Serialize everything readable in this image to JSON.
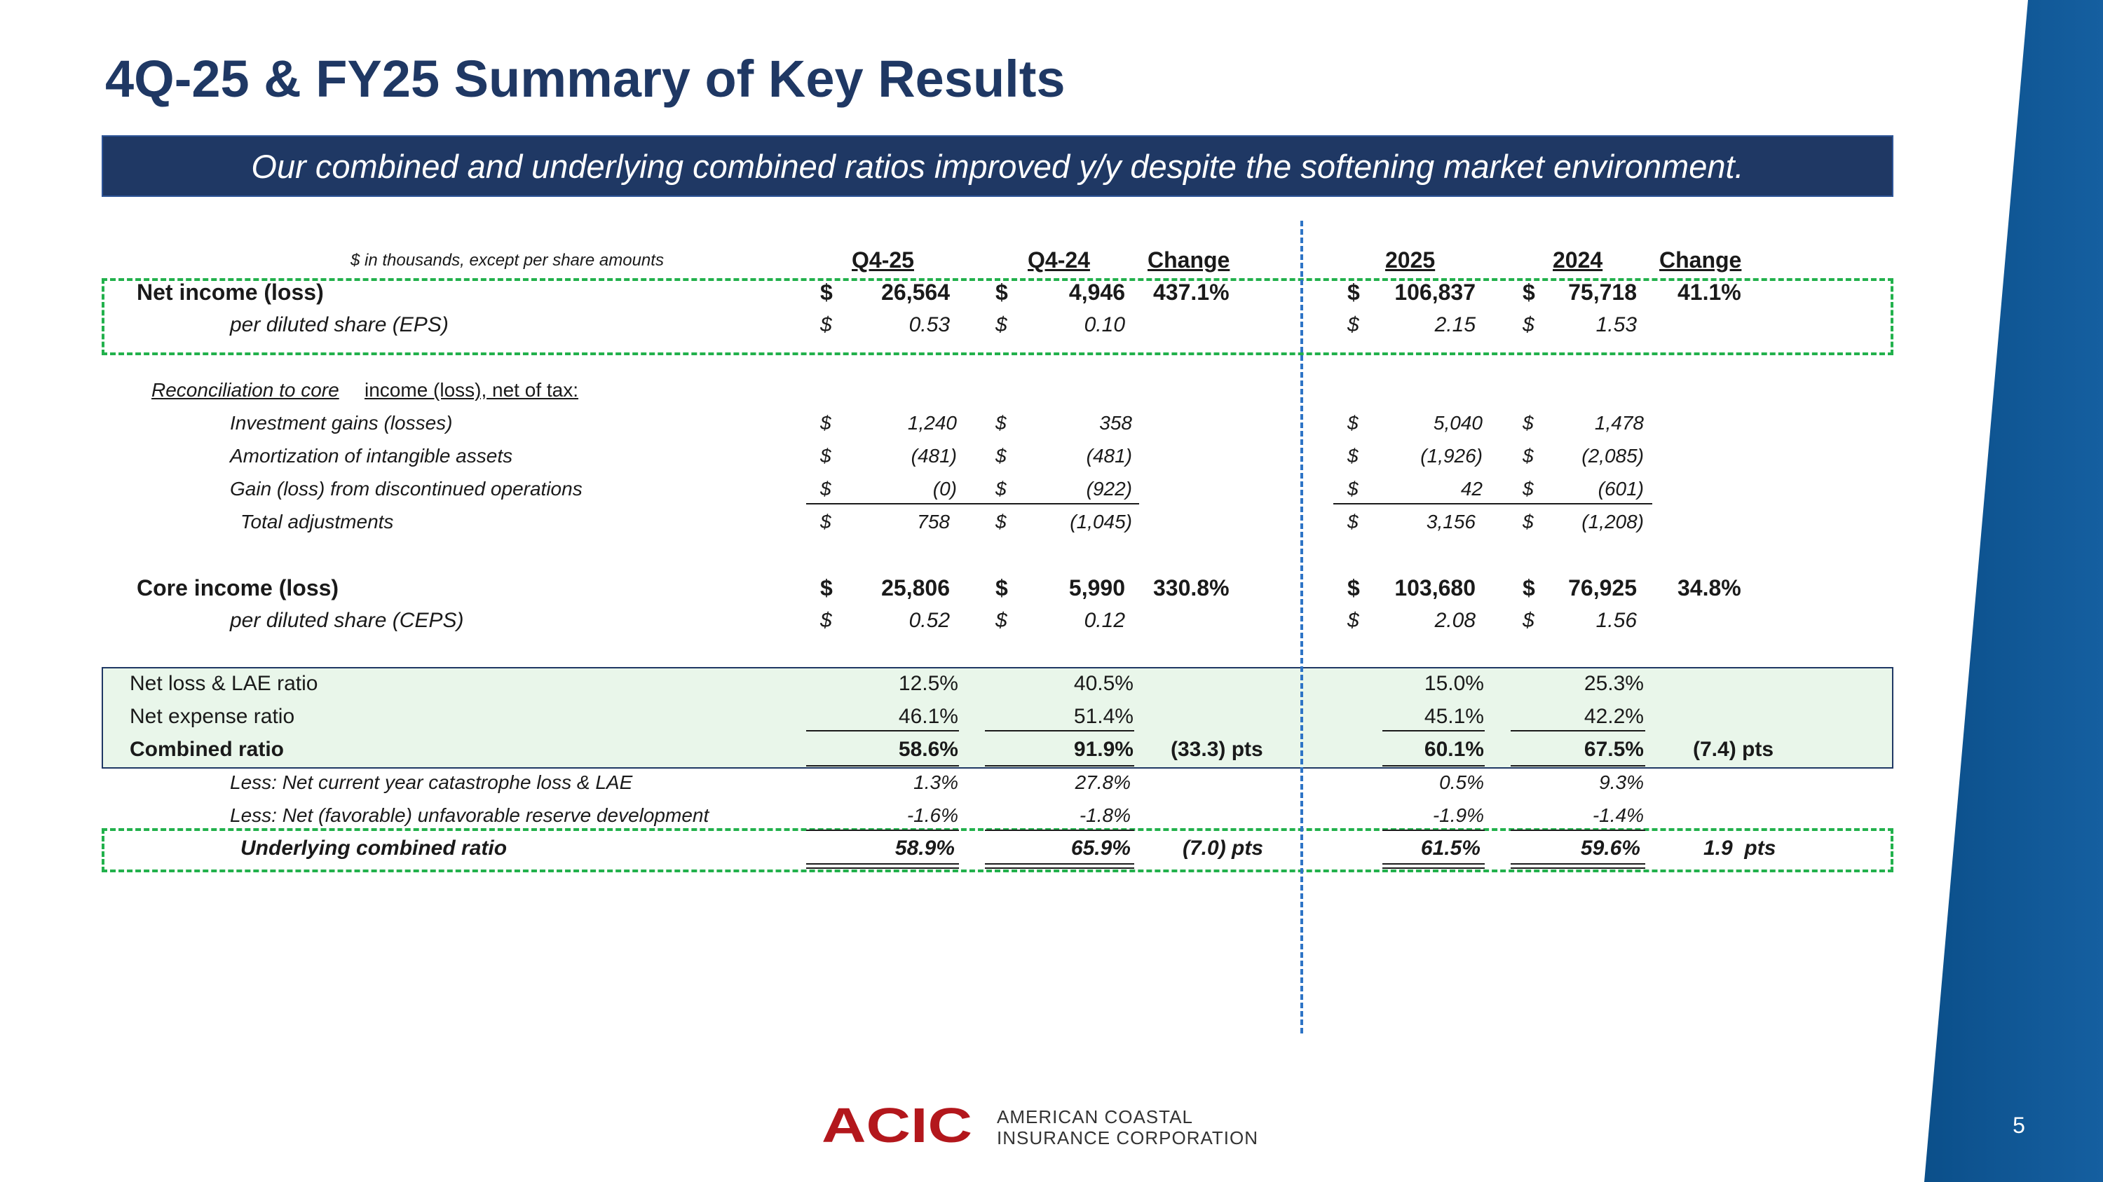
{
  "slide": {
    "title": "4Q-25 & FY25 Summary of Key Results",
    "banner": "Our combined and underlying combined ratios improved y/y despite the softening market environment.",
    "page_number": "5",
    "accent_color": "#1f3864",
    "band_color": "#0b4f8a"
  },
  "table": {
    "units_note": "$ in thousands, except per share amounts",
    "headers": {
      "q_cur": "Q4-25",
      "q_prior": "Q4-24",
      "q_change": "Change",
      "y_cur": "2025",
      "y_prior": "2024",
      "y_change": "Change"
    },
    "rows": [
      {
        "label": "Net income (loss)",
        "c1": "$",
        "v1": "26,564",
        "c2": "$",
        "v2": "4,946",
        "chg": "437.1%",
        "c3": "$",
        "v3": "106,837",
        "c4": "$",
        "v4": "75,718",
        "chg2": "41.1%"
      },
      {
        "label": "per diluted share (EPS)",
        "c1": "$",
        "v1": "0.53",
        "c2": "$",
        "v2": "0.10",
        "chg": "",
        "c3": "$",
        "v3": "2.15",
        "c4": "$",
        "v4": "1.53",
        "chg2": ""
      },
      {
        "label": "Reconciliation to core",
        "label2": "income (loss), net of tax:"
      },
      {
        "label": "Investment gains (losses)",
        "c1": "$",
        "v1": "1,240",
        "c2": "$",
        "v2": "358",
        "chg": "",
        "c3": "$",
        "v3": "5,040",
        "c4": "$",
        "v4": "1,478",
        "chg2": ""
      },
      {
        "label": "Amortization of intangible assets",
        "c1": "$",
        "v1": "(481)",
        "c2": "$",
        "v2": "(481)",
        "chg": "",
        "c3": "$",
        "v3": "(1,926)",
        "c4": "$",
        "v4": "(2,085)",
        "chg2": ""
      },
      {
        "label": "Gain (loss) from discontinued operations",
        "c1": "$",
        "v1": "(0)",
        "c2": "$",
        "v2": "(922)",
        "chg": "",
        "c3": "$",
        "v3": "42",
        "c4": "$",
        "v4": "(601)",
        "chg2": ""
      },
      {
        "label": "Total adjustments",
        "c1": "$",
        "v1": "758",
        "c2": "$",
        "v2": "(1,045)",
        "chg": "",
        "c3": "$",
        "v3": "3,156",
        "c4": "$",
        "v4": "(1,208)",
        "chg2": ""
      },
      {
        "label": "Core income (loss)",
        "c1": "$",
        "v1": "25,806",
        "c2": "$",
        "v2": "5,990",
        "chg": "330.8%",
        "c3": "$",
        "v3": "103,680",
        "c4": "$",
        "v4": "76,925",
        "chg2": "34.8%"
      },
      {
        "label": "per diluted share (CEPS)",
        "c1": "$",
        "v1": "0.52",
        "c2": "$",
        "v2": "0.12",
        "chg": "",
        "c3": "$",
        "v3": "2.08",
        "c4": "$",
        "v4": "1.56",
        "chg2": ""
      },
      {
        "label": "Net loss & LAE ratio",
        "v1": "12.5%",
        "v2": "40.5%",
        "chg": "",
        "v3": "15.0%",
        "v4": "25.3%",
        "chg2": ""
      },
      {
        "label": "Net expense ratio",
        "v1": "46.1%",
        "v2": "51.4%",
        "chg": "",
        "v3": "45.1%",
        "v4": "42.2%",
        "chg2": ""
      },
      {
        "label": "Combined ratio",
        "v1": "58.6%",
        "v2": "91.9%",
        "chg": "(33.3) pts",
        "v3": "60.1%",
        "v4": "67.5%",
        "chg2": "(7.4) pts"
      },
      {
        "label": "Less:  Net current year catastrophe loss & LAE",
        "v1": "1.3%",
        "v2": "27.8%",
        "chg": "",
        "v3": "0.5%",
        "v4": "9.3%",
        "chg2": ""
      },
      {
        "label": "Less: Net (favorable) unfavorable reserve development",
        "v1": "-1.6%",
        "v2": "-1.8%",
        "chg": "",
        "v3": "-1.9%",
        "v4": "-1.4%",
        "chg2": ""
      },
      {
        "label": "Underlying combined ratio",
        "v1": "58.9%",
        "v2": "65.9%",
        "chg": "(7.0) pts",
        "v3": "61.5%",
        "v4": "59.6%",
        "chg2": "1.9  pts"
      }
    ]
  },
  "footer": {
    "logo_mark": "ACIC",
    "company_line1": "AMERICAN COASTAL",
    "company_line2": "INSURANCE CORPORATION",
    "logo_color": "#b3171c"
  }
}
